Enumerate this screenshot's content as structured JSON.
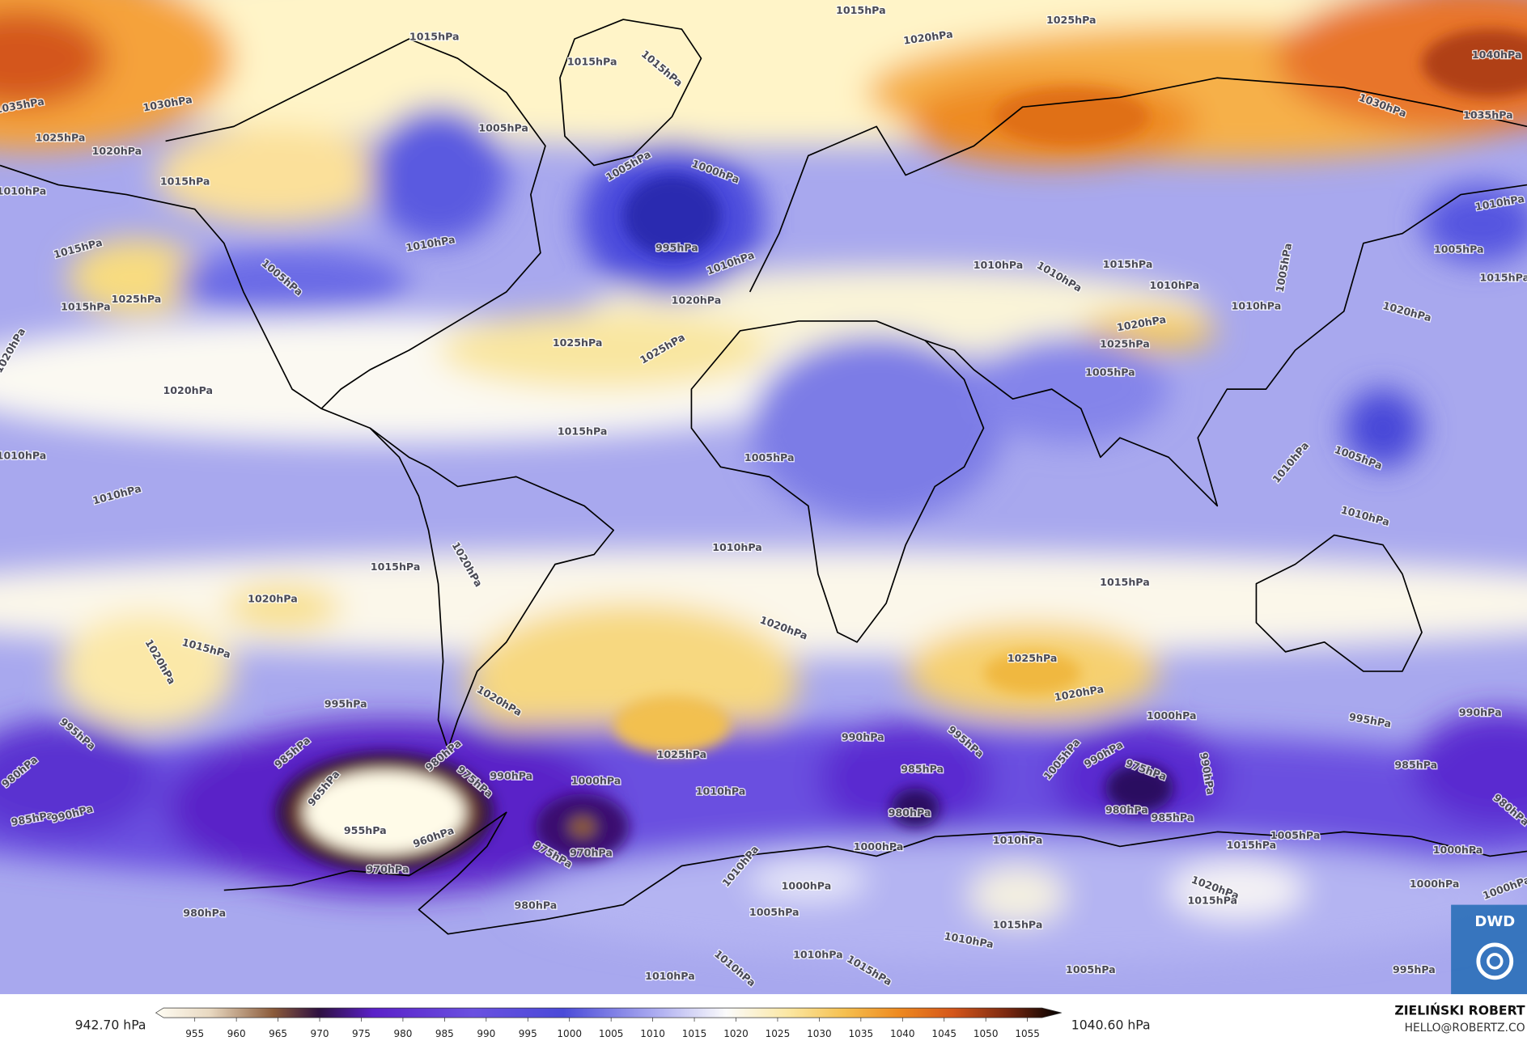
{
  "map": {
    "isobar_labels": [
      "1015hPa",
      "1025hPa",
      "1020hPa",
      "1015hPa",
      "1015hPa",
      "1015hPa",
      "1035hPa",
      "1030hPa",
      "1040hPa",
      "1030hPa",
      "1035hPa",
      "1025hPa",
      "1020hPa",
      "1015hPa",
      "1010hPa",
      "1005hPa",
      "1005hPa",
      "1000hPa",
      "995hPa",
      "1010hPa",
      "1010hPa",
      "1005hPa",
      "1015hPa",
      "1025hPa",
      "1015hPa",
      "1020hPa",
      "1020hPa",
      "1025hPa",
      "1025hPa",
      "1020hPa",
      "1015hPa",
      "1010hPa",
      "1010hPa",
      "1005hPa",
      "1010hPa",
      "1010hPa",
      "1015hPa",
      "1010hPa",
      "1005hPa",
      "1010hPa",
      "1020hPa",
      "1025hPa",
      "1005hPa",
      "1020hPa",
      "1015hPa",
      "1005hPa",
      "1010hPa",
      "1005hPa",
      "1010hPa",
      "1010hPa",
      "1010hPa",
      "1015hPa",
      "1020hPa",
      "1020hPa",
      "1015hPa",
      "1020hPa",
      "1015hPa",
      "1020hPa",
      "1025hPa",
      "1020hPa",
      "1020hPa",
      "1025hPa",
      "995hPa",
      "995hPa",
      "985hPa",
      "980hPa",
      "975hPa",
      "990hPa",
      "1000hPa",
      "1010hPa",
      "980hPa",
      "985hPa",
      "990hPa",
      "965hPa",
      "955hPa",
      "960hPa",
      "970hPa",
      "975hPa",
      "970hPa",
      "980hPa",
      "980hPa",
      "990hPa",
      "995hPa",
      "985hPa",
      "980hPa",
      "1000hPa",
      "1005hPa",
      "990hPa",
      "975hPa",
      "980hPa",
      "985hPa",
      "990hPa",
      "995hPa",
      "990hPa",
      "985hPa",
      "980hPa",
      "1000hPa",
      "1005hPa",
      "1010hPa",
      "1015hPa",
      "1010hPa",
      "1000hPa",
      "1005hPa",
      "1015hPa",
      "1010hPa",
      "1020hPa",
      "1015hPa",
      "1000hPa",
      "1000hPa",
      "1000hPa",
      "1010hPa",
      "1015hPa",
      "1010hPa",
      "1010hPa",
      "1005hPa",
      "995hPa"
    ]
  },
  "colorbar": {
    "min_label": "942.70 hPa",
    "max_label": "1040.60 hPa",
    "ticks": [
      955,
      960,
      965,
      970,
      975,
      980,
      985,
      990,
      995,
      1000,
      1005,
      1010,
      1015,
      1020,
      1025,
      1030,
      1035,
      1040,
      1045,
      1050,
      1055
    ]
  },
  "credit": {
    "author": "ZIELIŃSKI ROBERT",
    "email": "HELLO@ROBERTZ.CO"
  },
  "logo": "DWD"
}
